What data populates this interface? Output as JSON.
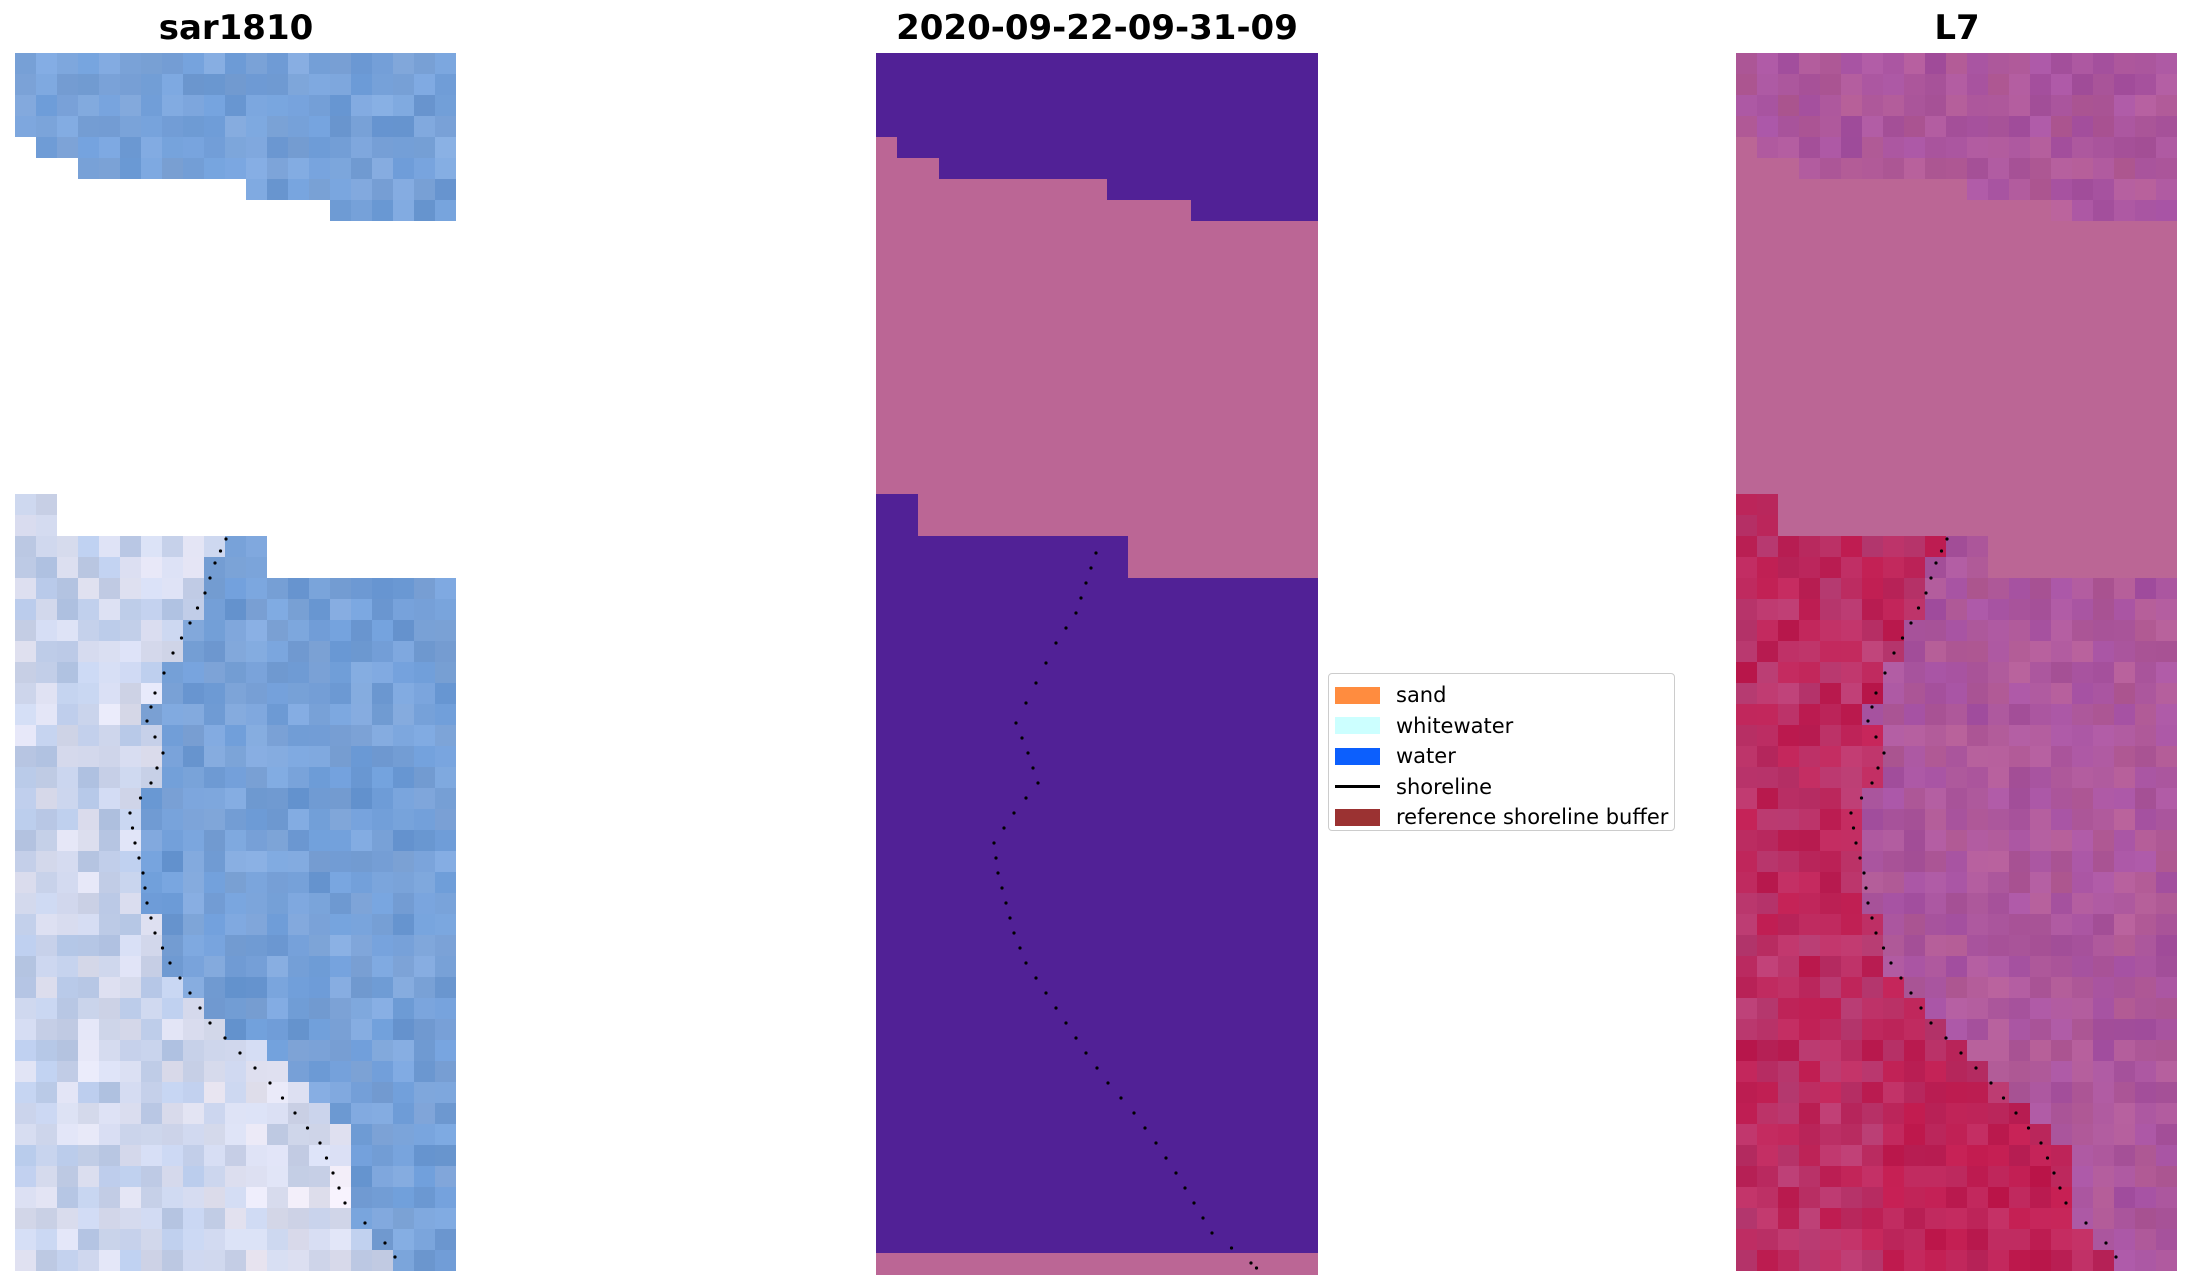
{
  "panels": [
    {
      "title": "sar1810",
      "image": "rgb-satellite-composite"
    },
    {
      "title": "2020-09-22-09-31-09",
      "image": "classified-image"
    },
    {
      "title": "L7",
      "image": "false-color-satellite-composite"
    }
  ],
  "legend": {
    "items": [
      {
        "label": "sand",
        "color": "#ff8c3f",
        "kind": "patch"
      },
      {
        "label": "whitewater",
        "color": "#ccffff",
        "kind": "patch"
      },
      {
        "label": "water",
        "color": "#0c5ffd",
        "kind": "patch"
      },
      {
        "label": "shoreline",
        "color": "#000000",
        "kind": "line"
      },
      {
        "label": "reference shoreline buffer",
        "color": "#9b3232",
        "kind": "patch"
      }
    ]
  },
  "colors": {
    "rgb_base": "#6b9ad6",
    "classified_dark": "#512196",
    "classified_pink": "#bb6695",
    "false_color_base": "#b35c95",
    "false_color_red": "#c0194d",
    "shoreline_dots": "#000000"
  }
}
